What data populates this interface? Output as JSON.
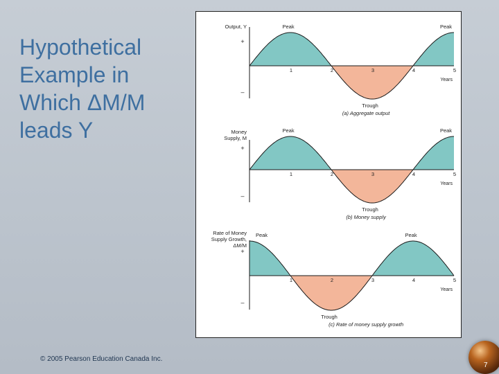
{
  "slide": {
    "title_lines": [
      "Hypothetical",
      "Example in",
      "Which ΔM/M",
      "leads Y"
    ],
    "footer": "© 2005 Pearson Education Canada Inc.",
    "page_number": "7"
  },
  "colors": {
    "above": "#82c7c4",
    "below": "#f3b69a",
    "title": "#3e6fa0"
  },
  "chart_data": [
    {
      "type": "line",
      "caption": "(a) Aggregate output",
      "ylabel": [
        "Output, Y"
      ],
      "phase": 0,
      "x_ticks": [
        "1",
        "2",
        "3",
        "4",
        "5"
      ],
      "x_unit": "Years",
      "peak_labels": [
        {
          "x": 0.95,
          "text": "Peak"
        },
        {
          "x": 4.95,
          "text": "Peak"
        }
      ],
      "trough_labels": [
        {
          "x": 2.95,
          "text": "Trough"
        }
      ],
      "plus": "+",
      "minus": "–"
    },
    {
      "type": "line",
      "caption": "(b) Money supply",
      "ylabel": [
        "Money",
        "Supply, M"
      ],
      "phase": 0,
      "x_ticks": [
        "1",
        "2",
        "3",
        "4",
        "5"
      ],
      "x_unit": "Years",
      "peak_labels": [
        {
          "x": 0.95,
          "text": "Peak"
        },
        {
          "x": 4.95,
          "text": "Peak"
        }
      ],
      "trough_labels": [
        {
          "x": 2.95,
          "text": "Trough"
        }
      ],
      "plus": "+",
      "minus": "–"
    },
    {
      "type": "line",
      "caption": "(c) Rate of money supply growth",
      "ylabel": [
        "Rate of Money",
        "Supply Growth,",
        "ΔM/M"
      ],
      "phase": -1,
      "x_ticks": [
        "1",
        "2",
        "3",
        "4",
        "5"
      ],
      "x_unit": "Years",
      "peak_labels": [
        {
          "x": 0.05,
          "text": "Peak"
        },
        {
          "x": 3.95,
          "text": "Peak"
        }
      ],
      "trough_labels": [
        {
          "x": 1.95,
          "text": "Trough"
        }
      ],
      "plus": "+",
      "minus": "–"
    }
  ]
}
